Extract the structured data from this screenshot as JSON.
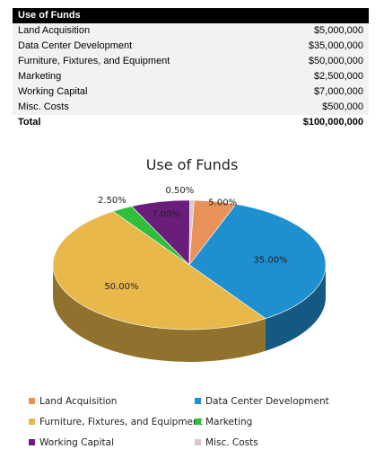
{
  "table": {
    "header": "Use of Funds",
    "rows": [
      {
        "label": "Land Acquisition",
        "value": "$5,000,000"
      },
      {
        "label": "Data Center Development",
        "value": "$35,000,000"
      },
      {
        "label": "Furniture, Fixtures, and Equipment",
        "value": "$50,000,000"
      },
      {
        "label": "Marketing",
        "value": "$2,500,000"
      },
      {
        "label": "Working Capital",
        "value": "$7,000,000"
      },
      {
        "label": "Misc. Costs",
        "value": "$500,000"
      }
    ],
    "total": {
      "label": "Total",
      "value": "$100,000,000"
    }
  },
  "chart_data": {
    "type": "pie",
    "title": "Use of Funds",
    "slices": [
      {
        "name": "Land Acquisition",
        "value": 5.0,
        "label": "5.00%",
        "color": "#e8925a"
      },
      {
        "name": "Data Center Development",
        "value": 35.0,
        "label": "35.00%",
        "color": "#1e90d0"
      },
      {
        "name": "Furniture, Fixtures, and Equipment",
        "value": 50.0,
        "label": "50.00%",
        "color": "#e8b84a"
      },
      {
        "name": "Marketing",
        "value": 2.5,
        "label": "2.50%",
        "color": "#2fbf3a"
      },
      {
        "name": "Working Capital",
        "value": 7.0,
        "label": "7.00%",
        "color": "#6a1d7a"
      },
      {
        "name": "Misc. Costs",
        "value": 0.5,
        "label": "0.50%",
        "color": "#d8c8cc"
      }
    ],
    "legend_position": "bottom"
  }
}
